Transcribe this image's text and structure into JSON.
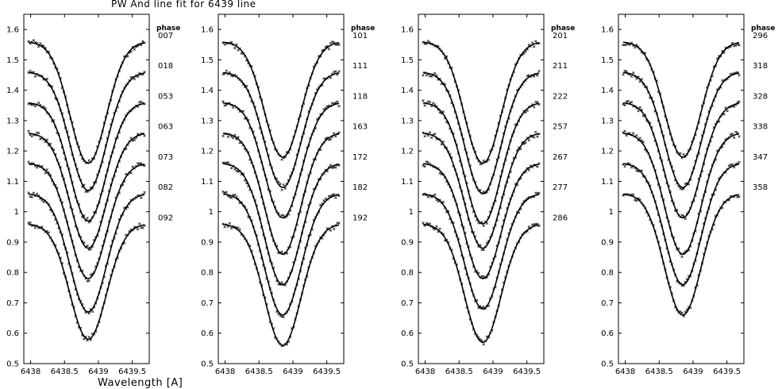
{
  "chart_data": {
    "type": "line",
    "title": "PW And line fit for 6439 line",
    "xlabel": "Wavelength [A]",
    "ylabel": "",
    "xlim": [
      6437.9,
      6439.75
    ],
    "ylim": [
      0.5,
      1.65
    ],
    "x_ticks": [
      6438,
      6438.5,
      6439,
      6439.5
    ],
    "x_tick_labels": [
      "6438",
      "6438.5",
      "6439",
      "6439.5"
    ],
    "y_ticks": [
      0.5,
      0.6,
      0.7,
      0.8,
      0.9,
      1,
      1.1,
      1.2,
      1.3,
      1.4,
      1.5,
      1.6
    ],
    "y_tick_labels": [
      "0.5",
      "0.6",
      "0.7",
      "0.8",
      "0.9",
      "1",
      "1.1",
      "1.2",
      "1.3",
      "1.4",
      "1.5",
      "1.6"
    ],
    "phase_header": "phase",
    "line_center": 6438.85,
    "panels": [
      {
        "series": [
          {
            "name": "007",
            "continuum": 1.56,
            "depth": 0.4,
            "label_y": 1.58
          },
          {
            "name": "018",
            "continuum": 1.46,
            "depth": 0.39,
            "label_y": 1.48
          },
          {
            "name": "053",
            "continuum": 1.36,
            "depth": 0.39,
            "label_y": 1.38
          },
          {
            "name": "063",
            "continuum": 1.26,
            "depth": 0.38,
            "label_y": 1.28
          },
          {
            "name": "073",
            "continuum": 1.16,
            "depth": 0.38,
            "label_y": 1.18
          },
          {
            "name": "082",
            "continuum": 1.06,
            "depth": 0.39,
            "label_y": 1.08
          },
          {
            "name": "092",
            "continuum": 0.96,
            "depth": 0.38,
            "label_y": 0.98
          }
        ]
      },
      {
        "series": [
          {
            "name": "101",
            "continuum": 1.56,
            "depth": 0.38,
            "label_y": 1.58
          },
          {
            "name": "111",
            "continuum": 1.46,
            "depth": 0.38,
            "label_y": 1.48
          },
          {
            "name": "118",
            "continuum": 1.36,
            "depth": 0.38,
            "label_y": 1.38
          },
          {
            "name": "163",
            "continuum": 1.26,
            "depth": 0.4,
            "label_y": 1.28
          },
          {
            "name": "172",
            "continuum": 1.16,
            "depth": 0.4,
            "label_y": 1.18
          },
          {
            "name": "182",
            "continuum": 1.06,
            "depth": 0.4,
            "label_y": 1.08
          },
          {
            "name": "192",
            "continuum": 0.96,
            "depth": 0.4,
            "label_y": 0.98
          }
        ]
      },
      {
        "series": [
          {
            "name": "201",
            "continuum": 1.56,
            "depth": 0.4,
            "label_y": 1.58
          },
          {
            "name": "211",
            "continuum": 1.46,
            "depth": 0.4,
            "label_y": 1.48
          },
          {
            "name": "222",
            "continuum": 1.36,
            "depth": 0.4,
            "label_y": 1.38
          },
          {
            "name": "257",
            "continuum": 1.26,
            "depth": 0.38,
            "label_y": 1.28
          },
          {
            "name": "267",
            "continuum": 1.16,
            "depth": 0.38,
            "label_y": 1.18
          },
          {
            "name": "277",
            "continuum": 1.06,
            "depth": 0.38,
            "label_y": 1.08
          },
          {
            "name": "286",
            "continuum": 0.96,
            "depth": 0.39,
            "label_y": 0.98
          }
        ]
      },
      {
        "series": [
          {
            "name": "296",
            "continuum": 1.56,
            "depth": 0.38,
            "label_y": 1.58
          },
          {
            "name": "318",
            "continuum": 1.46,
            "depth": 0.38,
            "label_y": 1.48
          },
          {
            "name": "328",
            "continuum": 1.36,
            "depth": 0.38,
            "label_y": 1.38
          },
          {
            "name": "338",
            "continuum": 1.26,
            "depth": 0.4,
            "label_y": 1.28
          },
          {
            "name": "347",
            "continuum": 1.16,
            "depth": 0.4,
            "label_y": 1.18
          },
          {
            "name": "358",
            "continuum": 1.06,
            "depth": 0.4,
            "label_y": 1.08
          }
        ]
      }
    ]
  }
}
